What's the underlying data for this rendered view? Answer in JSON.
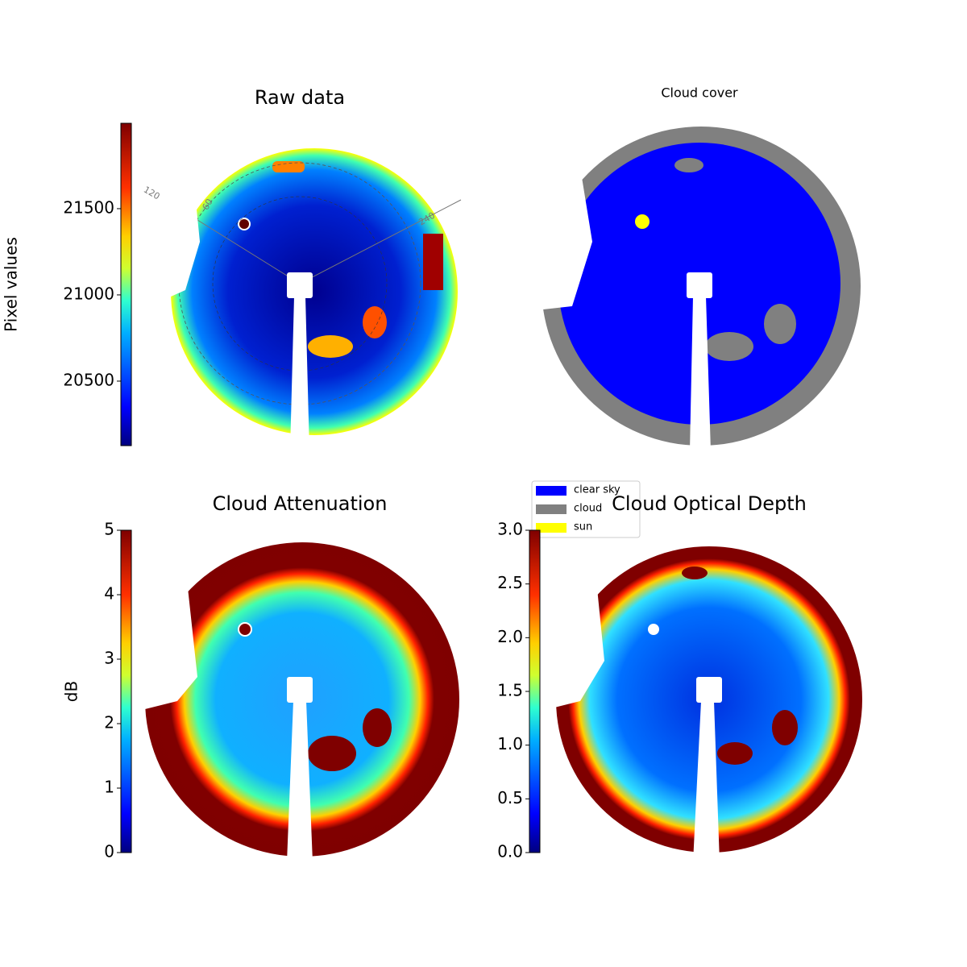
{
  "chart_data": [
    {
      "type": "image",
      "title": "Raw data",
      "annotations": [
        "120",
        "60",
        "240"
      ],
      "colorbar": {
        "label": "Pixel values",
        "lim": [
          20126,
          21995
        ],
        "ticks": [
          20500,
          21000,
          21500
        ],
        "cmap": "jet"
      }
    },
    {
      "type": "image",
      "title": "Cloud cover",
      "legend": [
        {
          "name": "clear sky",
          "color": "#0000ff"
        },
        {
          "name": "cloud",
          "color": "#808080"
        },
        {
          "name": "sun",
          "color": "#ffff00"
        }
      ]
    },
    {
      "type": "image",
      "title": "Cloud Attenuation",
      "colorbar": {
        "label": "dB",
        "lim": [
          0,
          5
        ],
        "ticks": [
          0,
          1,
          2,
          3,
          4,
          5
        ],
        "cmap": "jet"
      }
    },
    {
      "type": "image",
      "title": "Cloud Optical Depth",
      "colorbar": {
        "lim": [
          0,
          3
        ],
        "ticks": [
          {
            "value": 0,
            "label": "0.0"
          },
          0.5,
          {
            "value": 1,
            "label": "1.0"
          },
          1.5,
          {
            "value": 2,
            "label": "2.0"
          },
          2.5,
          {
            "value": 3,
            "label": "3.0"
          }
        ],
        "cmap": "jet"
      }
    }
  ]
}
